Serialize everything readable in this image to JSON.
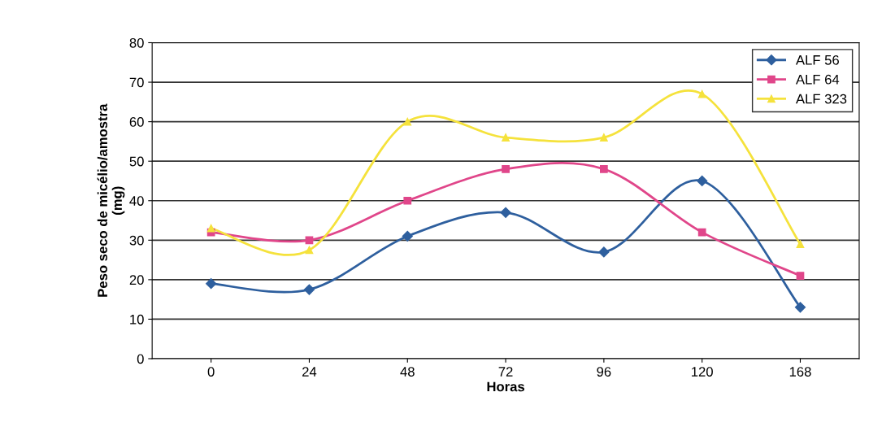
{
  "chart_data": {
    "type": "line",
    "xlabel": "Horas",
    "ylabel": "Peso seco de micélio/amostra\n(mg)",
    "categories": [
      "0",
      "24",
      "48",
      "72",
      "96",
      "120",
      "168"
    ],
    "series": [
      {
        "name": "ALF 56",
        "color": "#2e5f9e",
        "marker": "diamond",
        "values": [
          19,
          17.5,
          31,
          37,
          27,
          45,
          13
        ]
      },
      {
        "name": "ALF 64",
        "color": "#e0468a",
        "marker": "square",
        "values": [
          32,
          30,
          40,
          48,
          48,
          32,
          21
        ]
      },
      {
        "name": "ALF 323",
        "color": "#f5e23c",
        "marker": "triangle",
        "values": [
          33,
          27.5,
          60,
          56,
          56,
          67,
          29
        ]
      }
    ],
    "ylim": [
      0,
      80
    ],
    "yticks": [
      0,
      10,
      20,
      30,
      40,
      50,
      60,
      70,
      80
    ],
    "grid": "y",
    "legend": "top right",
    "line_style": "solid"
  }
}
